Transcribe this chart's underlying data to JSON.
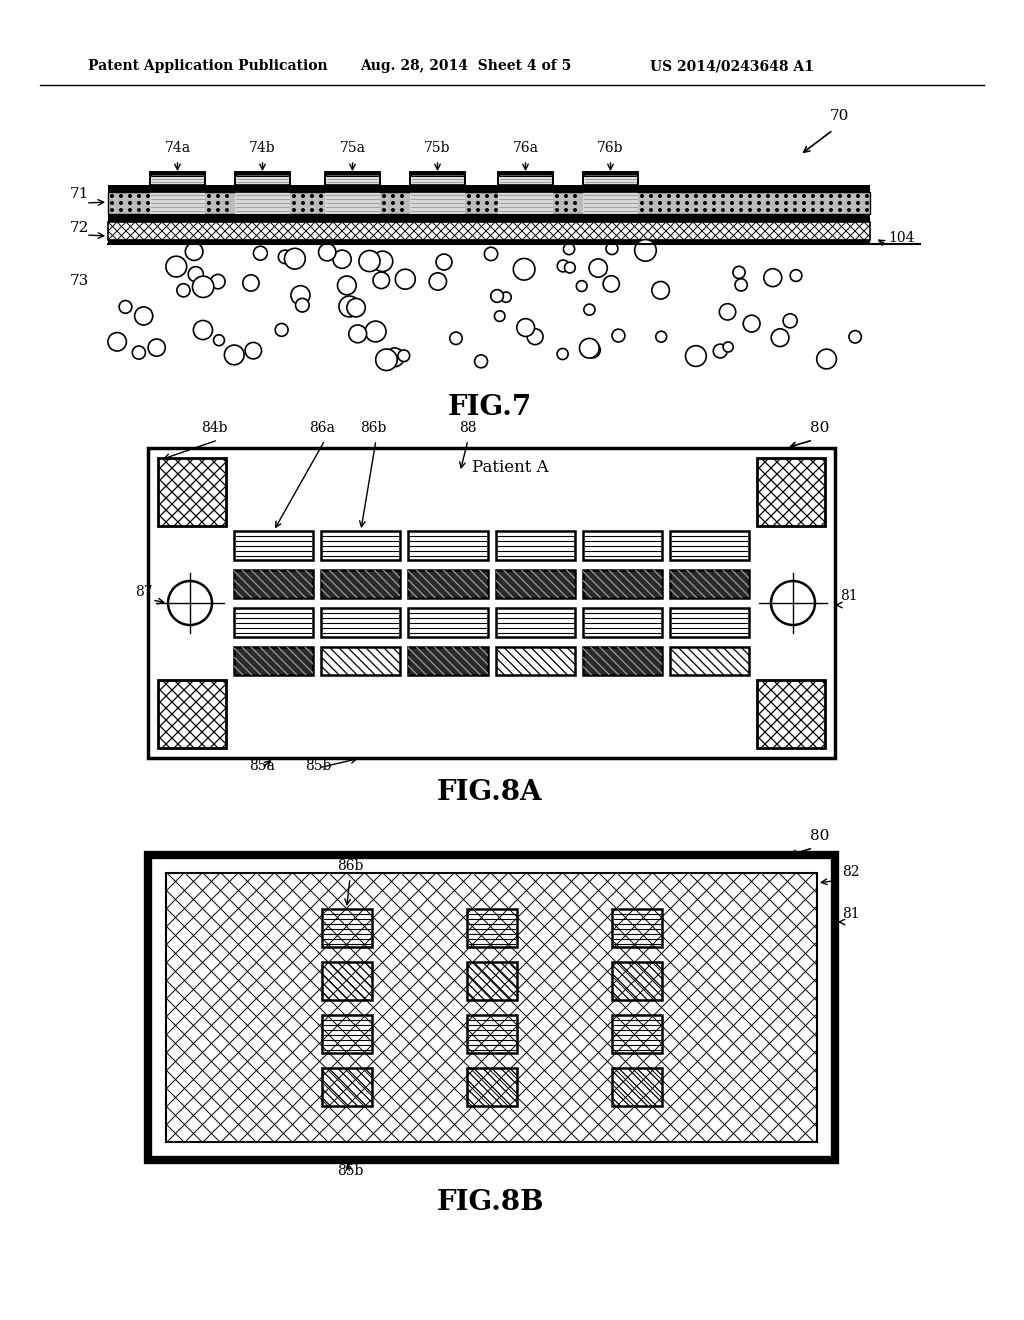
{
  "header_left": "Patent Application Publication",
  "header_mid": "Aug. 28, 2014  Sheet 4 of 5",
  "header_right": "US 2014/0243648 A1",
  "fig7_label": "FIG.7",
  "fig8a_label": "FIG.8A",
  "fig8b_label": "FIG.8B",
  "bg_color": "#ffffff",
  "line_color": "#000000"
}
